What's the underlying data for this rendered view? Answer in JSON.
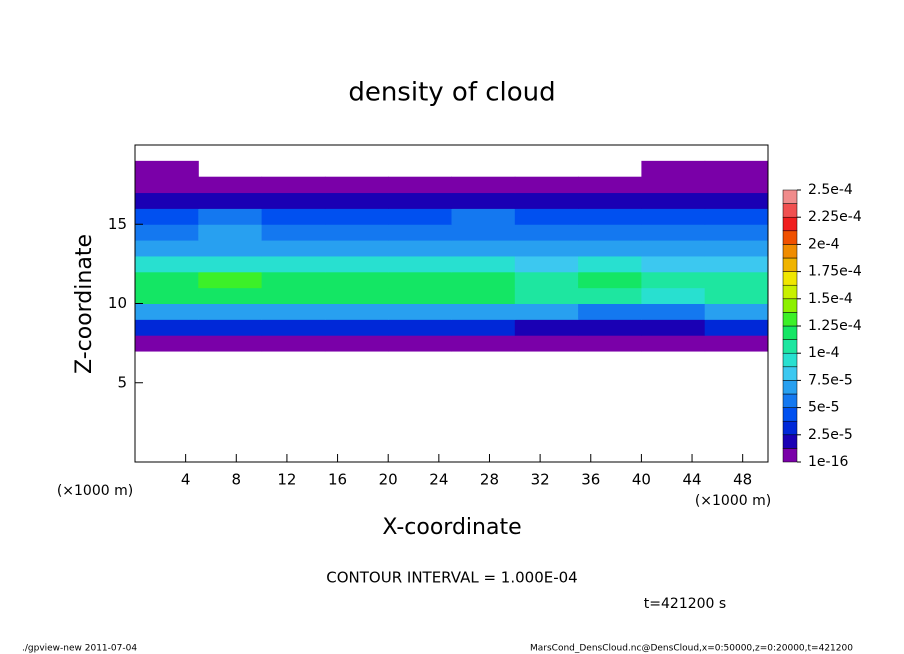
{
  "chart_data": {
    "type": "heatmap",
    "title": "density of cloud",
    "xlabel": "X-coordinate",
    "ylabel": "Z-coordinate",
    "xunits": "(×1000 m)",
    "yunits": "(×1000 m)",
    "contour_note": "CONTOUR INTERVAL = 1.000E-04",
    "time_label": "t=421200 s",
    "footer_left": "./gpview-new  2011-07-04",
    "footer_right": "MarsCond_DensCloud.nc@DensCloud,x=0:50000,z=0:20000,t=421200",
    "xlim": [
      0,
      50
    ],
    "ylim": [
      0,
      20
    ],
    "xticks": [
      4,
      8,
      12,
      16,
      20,
      24,
      28,
      32,
      36,
      40,
      44,
      48
    ],
    "yticks": [
      5,
      10,
      15
    ],
    "x": [
      0,
      5,
      10,
      15,
      20,
      25,
      30,
      35,
      40,
      45,
      50
    ],
    "z": [
      7,
      8,
      9,
      10,
      11,
      12,
      13,
      14,
      15,
      16,
      17,
      18,
      19
    ],
    "values": [
      [
        8e-06,
        8e-06,
        8e-06,
        9e-06,
        8e-06,
        8e-06,
        8e-06,
        6e-06,
        8e-06,
        8e-06
      ],
      [
        2.8e-05,
        3e-05,
        2.8e-05,
        2.6e-05,
        2.6e-05,
        2.8e-05,
        2.4e-05,
        2e-05,
        1.8e-05,
        2.6e-05
      ],
      [
        7e-05,
        7.2e-05,
        7e-05,
        6.8e-05,
        6.6e-05,
        7e-05,
        6.4e-05,
        6e-05,
        5.2e-05,
        6.6e-05
      ],
      [
        0.000118,
        0.000122,
        0.000118,
        0.000116,
        0.000118,
        0.000114,
        0.00011,
        0.000104,
        9.6e-05,
        0.000108
      ],
      [
        0.000122,
        0.000126,
        0.00012,
        0.000124,
        0.000122,
        0.000118,
        0.000112,
        0.000114,
        0.000108,
        0.000112
      ],
      [
        9.2e-05,
        9.4e-05,
        9e-05,
        9.2e-05,
        9.2e-05,
        8.8e-05,
        8.6e-05,
        8.8e-05,
        8.4e-05,
        8.6e-05
      ],
      [
        7e-05,
        7.2e-05,
        7e-05,
        7.2e-05,
        7e-05,
        6.8e-05,
        6.8e-05,
        6.6e-05,
        6.4e-05,
        6.6e-05
      ],
      [
        6.2e-05,
        6.4e-05,
        6e-05,
        6.2e-05,
        6.2e-05,
        6e-05,
        5.8e-05,
        5.6e-05,
        5.2e-05,
        5.6e-05
      ],
      [
        5e-05,
        5.2e-05,
        5e-05,
        5e-05,
        5e-05,
        5.2e-05,
        5e-05,
        4.8e-05,
        4.2e-05,
        4.8e-05
      ],
      [
        2.2e-05,
        2.4e-05,
        2.2e-05,
        2.2e-05,
        2.2e-05,
        2e-05,
        2.2e-05,
        2e-05,
        1.8e-05,
        2e-05
      ],
      [
        8e-06,
        8e-06,
        8e-06,
        8e-06,
        8e-06,
        8e-06,
        8e-06,
        8e-06,
        8e-06,
        8e-06
      ],
      [
        4e-06,
        0,
        0,
        0,
        0,
        0,
        0,
        0,
        4e-06,
        4e-06
      ]
    ],
    "clim": [
      1e-16,
      0.00025
    ],
    "colorbar_ticks": [
      {
        "value": 1e-16,
        "label": "1e-16"
      },
      {
        "value": 2.5e-05,
        "label": "2.5e-5"
      },
      {
        "value": 5e-05,
        "label": "5e-5"
      },
      {
        "value": 7.5e-05,
        "label": "7.5e-5"
      },
      {
        "value": 0.0001,
        "label": "1e-4"
      },
      {
        "value": 0.000125,
        "label": "1.25e-4"
      },
      {
        "value": 0.00015,
        "label": "1.5e-4"
      },
      {
        "value": 0.000175,
        "label": "1.75e-4"
      },
      {
        "value": 0.0002,
        "label": "2e-4"
      },
      {
        "value": 0.000225,
        "label": "2.25e-4"
      },
      {
        "value": 0.00025,
        "label": "2.5e-4"
      }
    ],
    "colors": [
      "#7a00a8",
      "#1a00b4",
      "#0028d8",
      "#0050f0",
      "#1478f0",
      "#28a0f0",
      "#3cc8f0",
      "#28e0d0",
      "#1ee6a0",
      "#14e664",
      "#3cf028",
      "#8cf000",
      "#c8f000",
      "#f0e600",
      "#f0b400",
      "#f08c00",
      "#f05000",
      "#f01e1e",
      "#f05050",
      "#f08c8c"
    ]
  }
}
